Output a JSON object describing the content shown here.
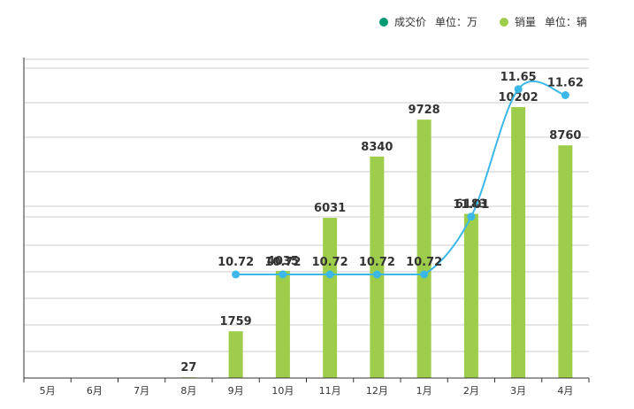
{
  "chart_data": {
    "type": "bar",
    "categories": [
      "5月",
      "6月",
      "7月",
      "8月",
      "9月",
      "10月",
      "11月",
      "12月",
      "1月",
      "2月",
      "3月",
      "4月"
    ],
    "series": [
      {
        "name": "成交价 单位：万",
        "type": "line",
        "color": "#3bb8e8",
        "values": [
          null,
          null,
          null,
          null,
          10.72,
          10.72,
          10.72,
          10.72,
          10.72,
          11.01,
          11.65,
          11.62
        ],
        "labels": [
          "",
          "",
          "",
          "",
          "10.72",
          "10.72",
          "10.72",
          "10.72",
          "10.72",
          "11.01",
          "11.65",
          "11.62"
        ]
      },
      {
        "name": "销量 单位：辆",
        "type": "bar",
        "color": "#9dcd4a",
        "values": [
          null,
          null,
          null,
          27,
          1759,
          4035,
          6031,
          8340,
          9728,
          6183,
          10202,
          8760
        ],
        "labels": [
          "",
          "",
          "",
          "27",
          "1759",
          "4035",
          "6031",
          "8340",
          "9728",
          "6183",
          "10202",
          "8760"
        ]
      }
    ],
    "legend": {
      "position": "top-right",
      "items": [
        {
          "marker_color": "#009a73",
          "label": "成交价",
          "unit": "单位：万"
        },
        {
          "marker_color": "#9dcd4a",
          "label": "销量",
          "unit": "单位：辆"
        }
      ]
    },
    "bar_axis": {
      "min": 0,
      "max": 12000
    },
    "line_axis": {
      "min": 10.2,
      "max": 11.8
    },
    "grid": true
  }
}
